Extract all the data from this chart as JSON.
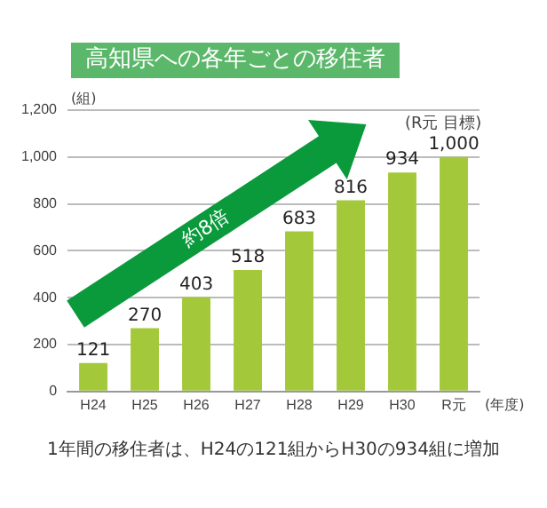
{
  "chart_data": {
    "type": "bar",
    "title": "高知県への各年ごとの移住者",
    "ylabel": "(組)",
    "xlabel": "(年度)",
    "categories": [
      "H24",
      "H25",
      "H26",
      "H27",
      "H28",
      "H29",
      "H30",
      "R元"
    ],
    "values": [
      121,
      270,
      403,
      518,
      683,
      816,
      934,
      1000
    ],
    "color": "#a3c93b",
    "ylim": [
      0,
      1200
    ],
    "yticks": [
      0,
      200,
      400,
      600,
      800,
      {
        "value": 1000,
        "label": "1,000"
      },
      {
        "value": 1200,
        "label": "1,200"
      }
    ],
    "grid": "y",
    "value_labels": [
      "121",
      "270",
      "403",
      "518",
      "683",
      "816",
      "934",
      "1,000"
    ],
    "annotations": [
      "約8倍",
      {
        "text": "(R元 目標)",
        "x": "R元",
        "y": 1000
      },
      "1年間の移住者は、H24の121組からH30の934組に増加"
    ]
  }
}
